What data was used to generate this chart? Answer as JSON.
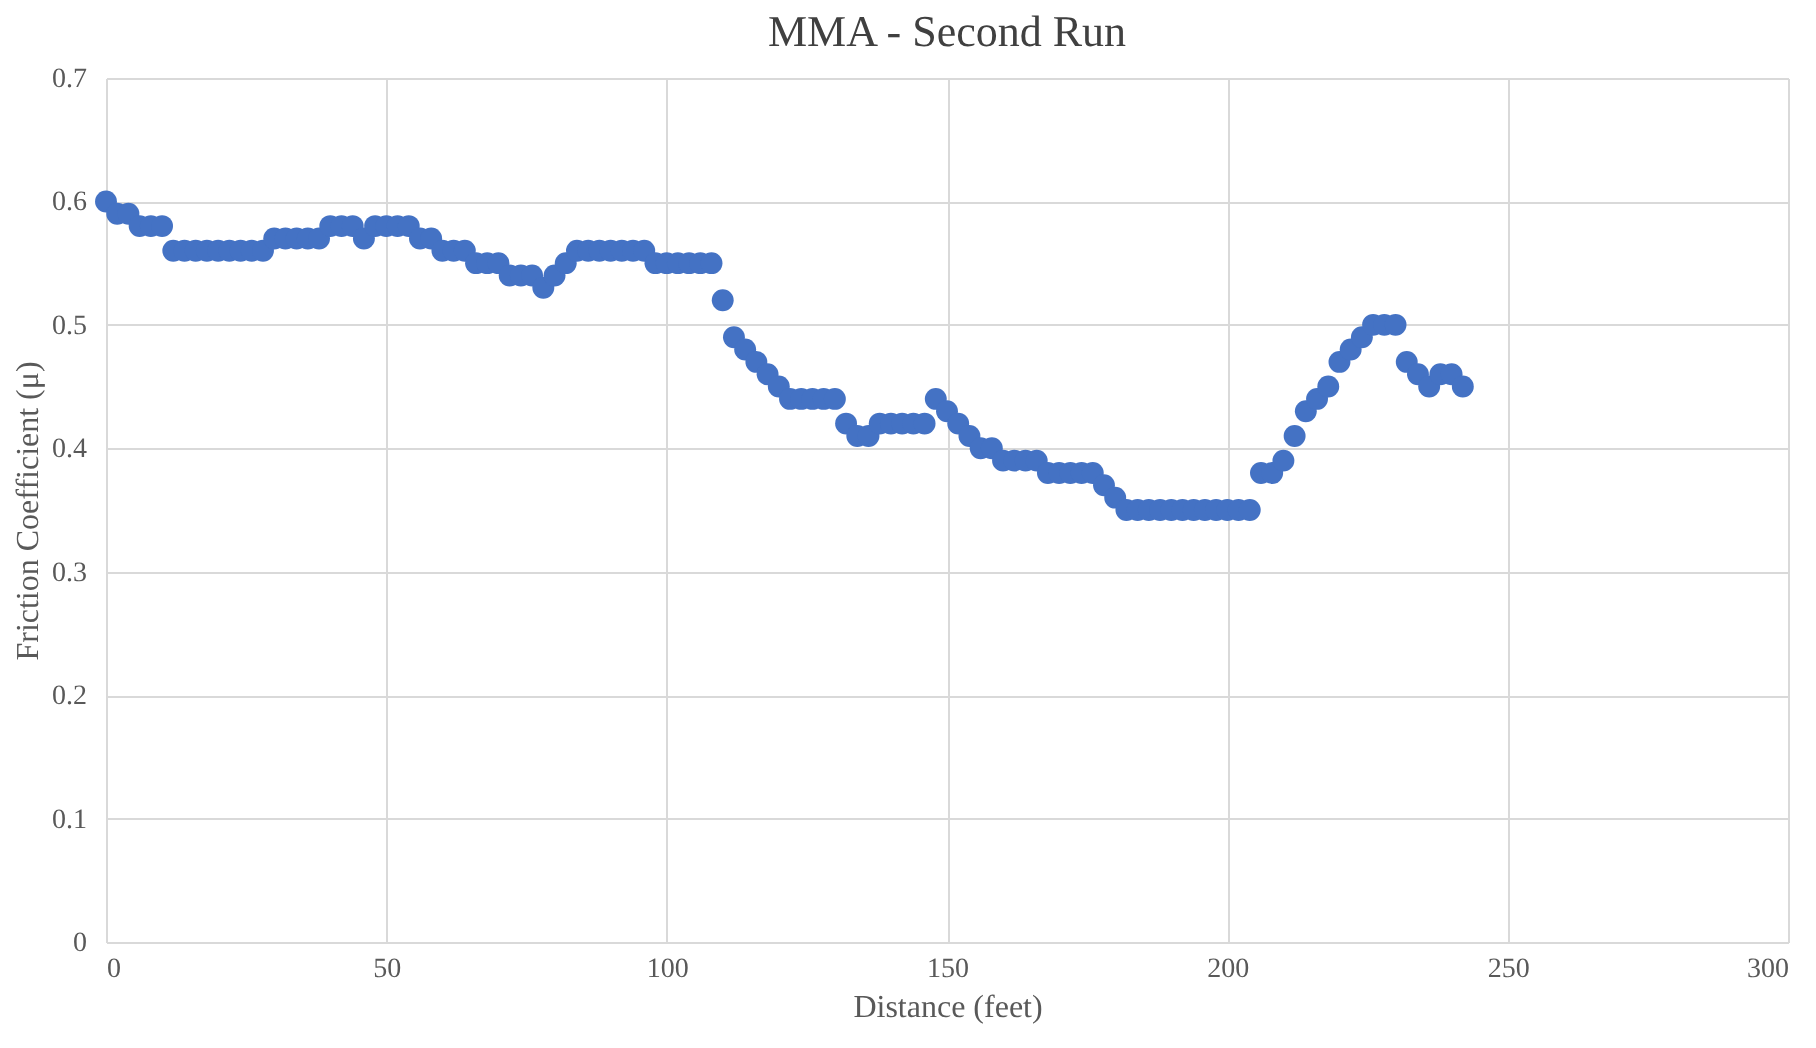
{
  "chart_data": {
    "type": "scatter",
    "title": "MMA - Second Run",
    "xlabel": "Distance (feet)",
    "ylabel": "Friction Coefficient (μ)",
    "xlim": [
      0,
      300
    ],
    "xticks": [
      0,
      50,
      100,
      150,
      200,
      250,
      300
    ],
    "ylim": [
      0,
      0.7
    ],
    "yticks": [
      0,
      0.1,
      0.2,
      0.3,
      0.4,
      0.5,
      0.6,
      0.7
    ],
    "grid": true,
    "marker": "circle",
    "series": [
      {
        "color": "#4472c4",
        "x": [
          0,
          2,
          4,
          6,
          8,
          10,
          12,
          14,
          16,
          18,
          20,
          22,
          24,
          26,
          28,
          30,
          32,
          34,
          36,
          38,
          40,
          42,
          44,
          46,
          48,
          50,
          52,
          54,
          56,
          58,
          60,
          62,
          64,
          66,
          68,
          70,
          72,
          74,
          76,
          78,
          80,
          82,
          84,
          86,
          88,
          90,
          92,
          94,
          96,
          98,
          100,
          102,
          104,
          106,
          108,
          110,
          112,
          114,
          116,
          118,
          120,
          122,
          124,
          126,
          128,
          130,
          132,
          134,
          136,
          138,
          140,
          142,
          144,
          146,
          148,
          150,
          152,
          154,
          156,
          158,
          160,
          162,
          164,
          166,
          168,
          170,
          172,
          174,
          176,
          178,
          180,
          182,
          184,
          186,
          188,
          190,
          192,
          194,
          196,
          198,
          200,
          202,
          204,
          206,
          208,
          210,
          212,
          214,
          216,
          218,
          220,
          222,
          224,
          226,
          228,
          230,
          232,
          234,
          236,
          238,
          240,
          242
        ],
        "values": [
          0.6,
          0.59,
          0.59,
          0.58,
          0.58,
          0.58,
          0.56,
          0.56,
          0.56,
          0.56,
          0.56,
          0.56,
          0.56,
          0.56,
          0.56,
          0.57,
          0.57,
          0.57,
          0.57,
          0.57,
          0.58,
          0.58,
          0.58,
          0.57,
          0.58,
          0.58,
          0.58,
          0.58,
          0.57,
          0.57,
          0.56,
          0.56,
          0.56,
          0.55,
          0.55,
          0.55,
          0.54,
          0.54,
          0.54,
          0.53,
          0.54,
          0.55,
          0.56,
          0.56,
          0.56,
          0.56,
          0.56,
          0.56,
          0.56,
          0.55,
          0.55,
          0.55,
          0.55,
          0.55,
          0.55,
          0.52,
          0.49,
          0.48,
          0.47,
          0.46,
          0.45,
          0.44,
          0.44,
          0.44,
          0.44,
          0.44,
          0.42,
          0.41,
          0.41,
          0.42,
          0.42,
          0.42,
          0.42,
          0.42,
          0.44,
          0.43,
          0.42,
          0.41,
          0.4,
          0.4,
          0.39,
          0.39,
          0.39,
          0.39,
          0.38,
          0.38,
          0.38,
          0.38,
          0.38,
          0.37,
          0.36,
          0.35,
          0.35,
          0.35,
          0.35,
          0.35,
          0.35,
          0.35,
          0.35,
          0.35,
          0.35,
          0.35,
          0.35,
          0.38,
          0.38,
          0.39,
          0.41,
          0.43,
          0.44,
          0.45,
          0.47,
          0.48,
          0.49,
          0.5,
          0.5,
          0.5,
          0.47,
          0.46,
          0.45,
          0.46,
          0.46,
          0.45
        ]
      }
    ]
  }
}
